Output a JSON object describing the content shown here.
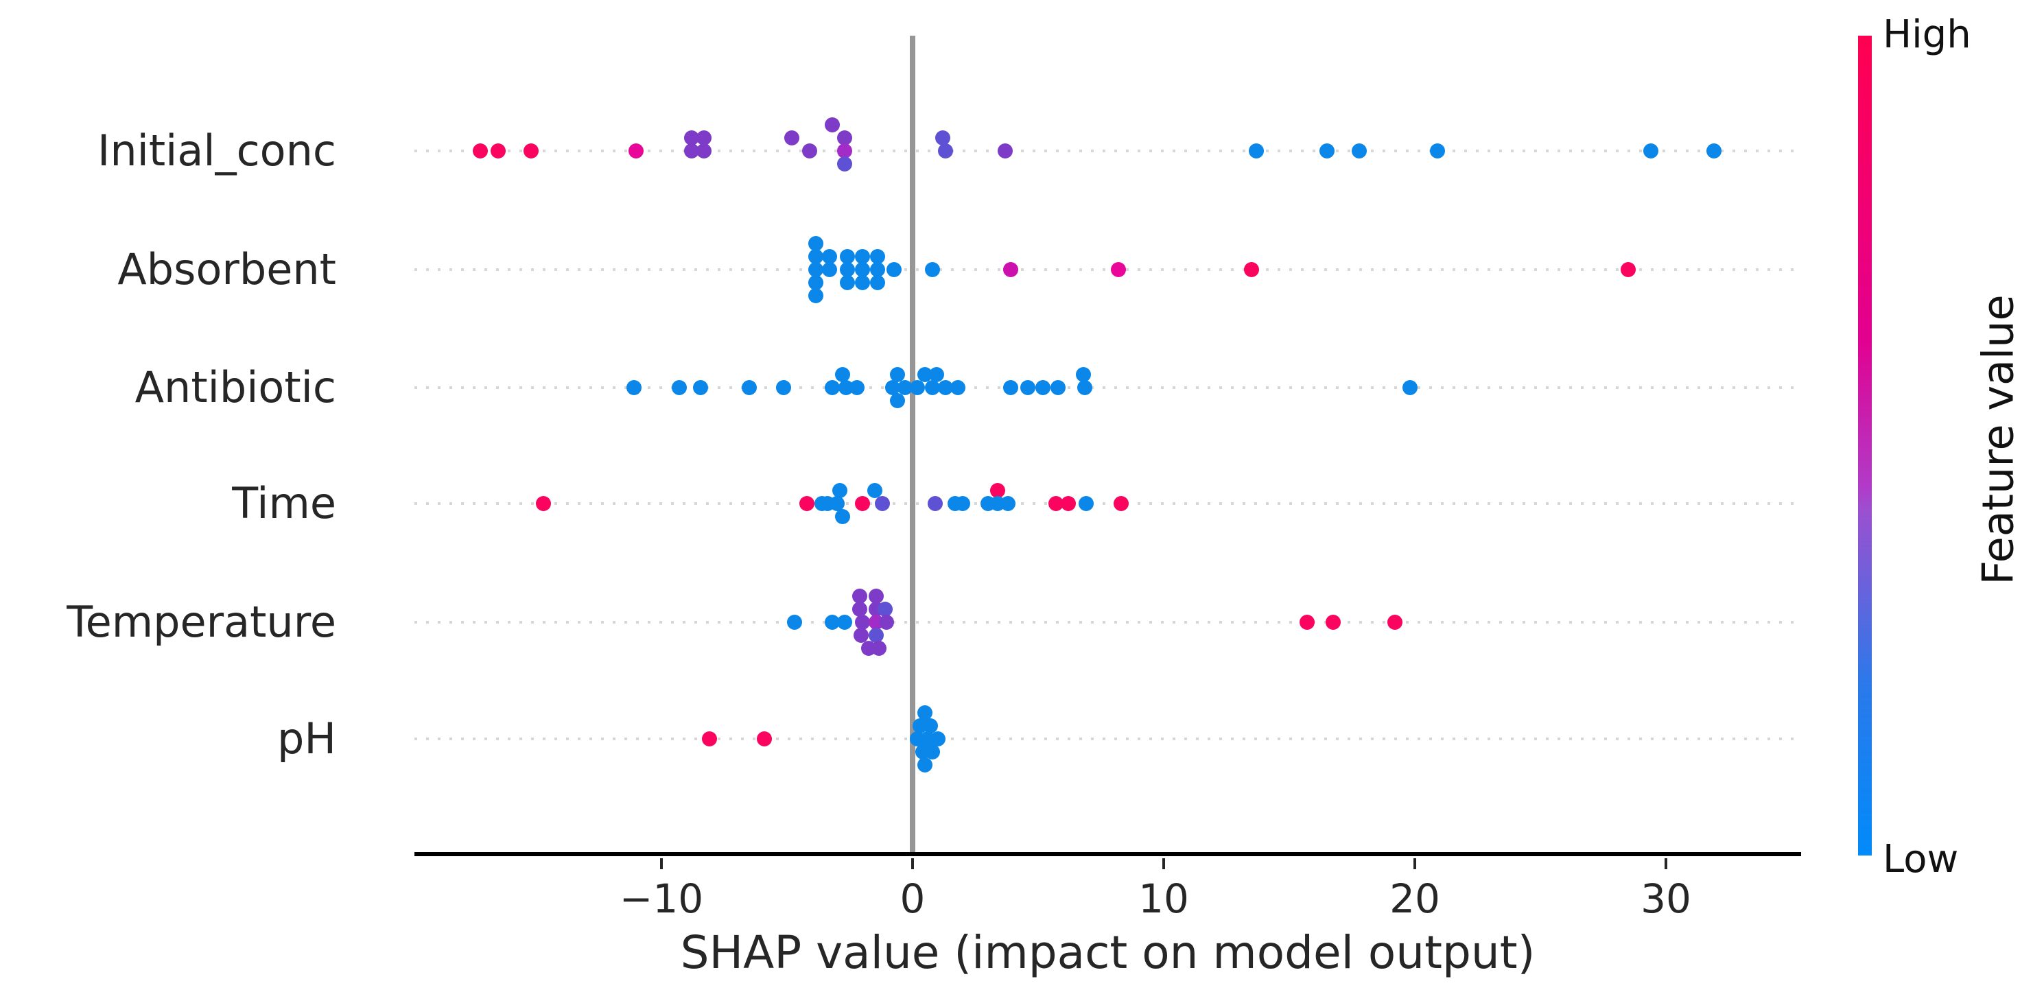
{
  "chart_data": {
    "type": "scatter",
    "subtype": "shap-beeswarm-summary",
    "xlabel": "SHAP value (impact on model output)",
    "x_ticks": [
      -10,
      0,
      10,
      20,
      30
    ],
    "x_tick_labels": [
      "−10",
      "0",
      "10",
      "20",
      "30"
    ],
    "xlim": [
      -19.9,
      35.4
    ],
    "grid": "dotted-horizontal-per-feature",
    "zero_reference_line": true,
    "features": [
      "Initial_conc",
      "Absorbent",
      "Antibiotic",
      "Time",
      "Temperature",
      "pH"
    ],
    "palette": {
      "b": "#0b87ea",
      "r": "#fb045f",
      "m": "#e9079a",
      "pm2": "#cb10ae",
      "pm": "#a32cc8",
      "p": "#7d3bc8",
      "bv": "#5f51d3"
    },
    "points_format": [
      "shap_value",
      "stack_offset",
      "color_key"
    ],
    "points": {
      "Initial_conc": [
        [
          -17.2,
          0,
          "r"
        ],
        [
          -16.5,
          0,
          "r"
        ],
        [
          -15.2,
          0,
          "r"
        ],
        [
          -11.0,
          0,
          "m"
        ],
        [
          -8.8,
          -1,
          "p"
        ],
        [
          -8.8,
          0,
          "p"
        ],
        [
          -8.3,
          -1,
          "p"
        ],
        [
          -8.3,
          0,
          "p"
        ],
        [
          -4.8,
          -1,
          "p"
        ],
        [
          -4.1,
          0,
          "p"
        ],
        [
          -3.2,
          -2,
          "p"
        ],
        [
          -2.7,
          -1,
          "p"
        ],
        [
          -2.7,
          0,
          "pm"
        ],
        [
          -2.7,
          1,
          "bv"
        ],
        [
          1.2,
          -1,
          "bv"
        ],
        [
          1.3,
          0,
          "bv"
        ],
        [
          3.7,
          0,
          "p"
        ],
        [
          13.7,
          0,
          "b"
        ],
        [
          16.5,
          0,
          "b"
        ],
        [
          17.8,
          0,
          "b"
        ],
        [
          20.9,
          0,
          "b"
        ],
        [
          29.4,
          0,
          "b"
        ],
        [
          31.9,
          0,
          "b"
        ]
      ],
      "Absorbent": [
        [
          -3.85,
          -2,
          "b"
        ],
        [
          -3.85,
          -1,
          "b"
        ],
        [
          -3.85,
          0,
          "b"
        ],
        [
          -3.85,
          1,
          "b"
        ],
        [
          -3.85,
          2,
          "b"
        ],
        [
          -3.3,
          -1,
          "b"
        ],
        [
          -3.3,
          0,
          "b"
        ],
        [
          -2.6,
          -1,
          "b"
        ],
        [
          -2.6,
          0,
          "b"
        ],
        [
          -2.6,
          1,
          "b"
        ],
        [
          -2.0,
          -1,
          "b"
        ],
        [
          -2.0,
          0,
          "b"
        ],
        [
          -2.0,
          1,
          "b"
        ],
        [
          -1.4,
          -1,
          "b"
        ],
        [
          -1.4,
          0,
          "b"
        ],
        [
          -1.4,
          1,
          "b"
        ],
        [
          -0.75,
          0,
          "b"
        ],
        [
          0.8,
          0,
          "b"
        ],
        [
          3.9,
          0,
          "pm2"
        ],
        [
          8.2,
          0,
          "m"
        ],
        [
          13.5,
          0,
          "r"
        ],
        [
          28.5,
          0,
          "r"
        ]
      ],
      "Antibiotic": [
        [
          -11.1,
          0,
          "b"
        ],
        [
          -9.3,
          0,
          "b"
        ],
        [
          -8.45,
          0,
          "b"
        ],
        [
          -6.5,
          0,
          "b"
        ],
        [
          -5.15,
          0,
          "b"
        ],
        [
          -3.2,
          0,
          "b"
        ],
        [
          -2.8,
          -1,
          "b"
        ],
        [
          -2.65,
          0,
          "b"
        ],
        [
          -2.2,
          0,
          "b"
        ],
        [
          -0.8,
          0,
          "b"
        ],
        [
          -0.6,
          -1,
          "b"
        ],
        [
          -0.6,
          1,
          "b"
        ],
        [
          -0.3,
          0,
          "b"
        ],
        [
          0.2,
          0,
          "b"
        ],
        [
          0.5,
          -1,
          "b"
        ],
        [
          0.8,
          0,
          "b"
        ],
        [
          0.95,
          -1,
          "b"
        ],
        [
          1.3,
          0,
          "b"
        ],
        [
          1.8,
          0,
          "b"
        ],
        [
          3.9,
          0,
          "b"
        ],
        [
          4.6,
          0,
          "b"
        ],
        [
          5.2,
          0,
          "b"
        ],
        [
          5.8,
          0,
          "b"
        ],
        [
          6.8,
          -1,
          "b"
        ],
        [
          6.85,
          0,
          "b"
        ],
        [
          19.8,
          0,
          "b"
        ]
      ],
      "Time": [
        [
          -14.7,
          0,
          "r"
        ],
        [
          -4.2,
          0,
          "r"
        ],
        [
          -3.6,
          0,
          "b"
        ],
        [
          -3.4,
          0,
          "b"
        ],
        [
          -3.0,
          0,
          "b"
        ],
        [
          -2.9,
          -1,
          "b"
        ],
        [
          -2.8,
          1,
          "b"
        ],
        [
          -2.0,
          0,
          "r"
        ],
        [
          -1.5,
          -1,
          "b"
        ],
        [
          -1.2,
          0,
          "bv"
        ],
        [
          0.9,
          0,
          "bv"
        ],
        [
          1.7,
          0,
          "b"
        ],
        [
          2.0,
          0,
          "b"
        ],
        [
          3.0,
          0,
          "b"
        ],
        [
          3.4,
          -1,
          "r"
        ],
        [
          3.4,
          0,
          "b"
        ],
        [
          3.8,
          0,
          "b"
        ],
        [
          5.7,
          0,
          "r"
        ],
        [
          6.2,
          0,
          "r"
        ],
        [
          6.9,
          0,
          "b"
        ],
        [
          8.3,
          0,
          "r"
        ]
      ],
      "Temperature": [
        [
          -4.7,
          0,
          "b"
        ],
        [
          -3.2,
          0,
          "b"
        ],
        [
          -2.7,
          0,
          "b"
        ],
        [
          -2.1,
          -2,
          "p"
        ],
        [
          -1.45,
          -2,
          "p"
        ],
        [
          -2.1,
          -1,
          "p"
        ],
        [
          -1.45,
          -1,
          "p"
        ],
        [
          -1.1,
          -1,
          "bv"
        ],
        [
          -2.0,
          0,
          "p"
        ],
        [
          -1.45,
          0,
          "pm"
        ],
        [
          -1.05,
          0,
          "p"
        ],
        [
          -2.05,
          1,
          "p"
        ],
        [
          -1.45,
          1,
          "bv"
        ],
        [
          -1.75,
          2,
          "p"
        ],
        [
          -1.35,
          2,
          "p"
        ],
        [
          15.7,
          0,
          "r"
        ],
        [
          16.75,
          0,
          "r"
        ],
        [
          19.2,
          0,
          "r"
        ]
      ],
      "pH": [
        [
          -8.1,
          0,
          "r"
        ],
        [
          -5.9,
          0,
          "r"
        ],
        [
          0.5,
          -2,
          "b"
        ],
        [
          0.3,
          -1,
          "b"
        ],
        [
          0.7,
          -1,
          "b"
        ],
        [
          0.2,
          0,
          "b"
        ],
        [
          0.6,
          0,
          "b"
        ],
        [
          1.0,
          0,
          "b"
        ],
        [
          0.4,
          1,
          "b"
        ],
        [
          0.8,
          1,
          "b"
        ],
        [
          0.5,
          2,
          "b"
        ]
      ]
    },
    "colorbar": {
      "label": "Feature value",
      "high": "High",
      "low": "Low",
      "high_color": "#ff0051",
      "low_color": "#018bfa",
      "position": "right"
    }
  }
}
